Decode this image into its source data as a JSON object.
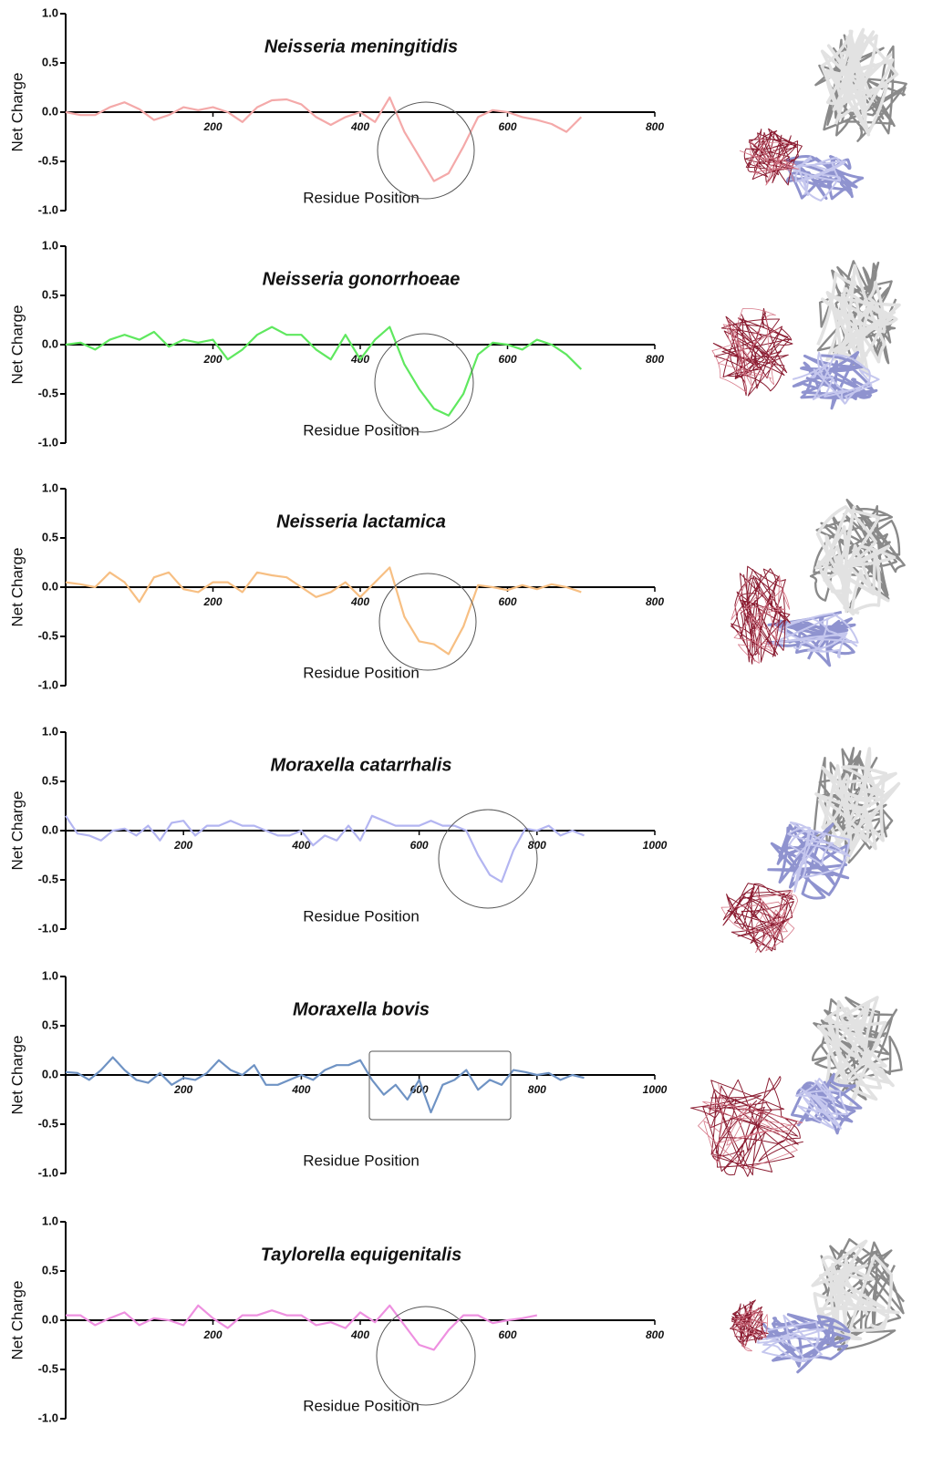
{
  "chart_data": [
    {
      "type": "line",
      "title": "Neisseria meningitidis",
      "xlabel": "Residue Position",
      "ylabel": "Net Charge",
      "color": "#f4a9a9",
      "x": [
        0,
        20,
        40,
        60,
        80,
        100,
        120,
        140,
        160,
        180,
        200,
        220,
        240,
        260,
        280,
        300,
        320,
        340,
        360,
        380,
        400,
        420,
        440,
        460,
        480,
        500,
        520,
        540,
        560,
        580,
        600,
        620,
        640,
        660,
        680,
        700
      ],
      "values": [
        0,
        -0.03,
        -0.03,
        0.05,
        0.1,
        0.03,
        -0.08,
        -0.03,
        0.05,
        0.02,
        0.05,
        0,
        -0.1,
        0.05,
        0.12,
        0.13,
        0.08,
        -0.05,
        -0.13,
        -0.05,
        0,
        -0.1,
        0.15,
        -0.2,
        -0.45,
        -0.7,
        -0.62,
        -0.35,
        -0.05,
        0.02,
        0,
        -0.05,
        -0.08,
        -0.12,
        -0.2,
        -0.05
      ],
      "xlim": [
        0,
        800
      ],
      "xticks": [
        200,
        400,
        600,
        800
      ],
      "ylim": [
        -1,
        1
      ],
      "yticks": [
        {
          "value": 1,
          "label": "1.0"
        },
        {
          "value": 0.5,
          "label": "0.5"
        },
        {
          "value": 0,
          "label": "0.0"
        },
        {
          "value": -0.5,
          "label": "-0.5"
        },
        {
          "value": -1,
          "label": "-1.0"
        }
      ]
    },
    {
      "type": "line",
      "title": "Neisseria gonorrhoeae",
      "xlabel": "Residue Position",
      "ylabel": "Net Charge",
      "color": "#5fe85f",
      "x": [
        0,
        20,
        40,
        60,
        80,
        100,
        120,
        140,
        160,
        180,
        200,
        220,
        240,
        260,
        280,
        300,
        320,
        340,
        360,
        380,
        400,
        420,
        440,
        460,
        480,
        500,
        520,
        540,
        560,
        580,
        600,
        620,
        640,
        660,
        680,
        700
      ],
      "values": [
        0,
        0.02,
        -0.05,
        0.05,
        0.1,
        0.05,
        0.13,
        -0.02,
        0.05,
        0.02,
        0.05,
        -0.15,
        -0.05,
        0.1,
        0.18,
        0.1,
        0.1,
        -0.05,
        -0.15,
        0.1,
        -0.15,
        0.05,
        0.18,
        -0.2,
        -0.45,
        -0.65,
        -0.72,
        -0.5,
        -0.1,
        0.02,
        0,
        -0.05,
        0.05,
        0,
        -0.1,
        -0.25
      ],
      "xlim": [
        0,
        800
      ],
      "xticks": [
        200,
        400,
        600,
        800
      ],
      "ylim": [
        -1,
        1
      ],
      "yticks": [
        {
          "value": 1,
          "label": "1.0"
        },
        {
          "value": 0.5,
          "label": "0.5"
        },
        {
          "value": 0,
          "label": "0.0"
        },
        {
          "value": -0.5,
          "label": "-0.5"
        },
        {
          "value": -1,
          "label": "-1.0"
        }
      ]
    },
    {
      "type": "line",
      "title": "Neisseria lactamica",
      "xlabel": "Residue Position",
      "ylabel": "Net Charge",
      "color": "#f7bf83",
      "x": [
        0,
        20,
        40,
        60,
        80,
        100,
        120,
        140,
        160,
        180,
        200,
        220,
        240,
        260,
        280,
        300,
        320,
        340,
        360,
        380,
        400,
        420,
        440,
        460,
        480,
        500,
        520,
        540,
        560,
        580,
        600,
        620,
        640,
        660,
        680,
        700
      ],
      "values": [
        0.05,
        0.03,
        0,
        0.15,
        0.05,
        -0.15,
        0.1,
        0.15,
        -0.02,
        -0.05,
        0.05,
        0.05,
        -0.05,
        0.15,
        0.12,
        0.1,
        0,
        -0.1,
        -0.05,
        0.05,
        -0.1,
        0.05,
        0.2,
        -0.3,
        -0.55,
        -0.58,
        -0.68,
        -0.4,
        0.02,
        0,
        -0.03,
        0.02,
        -0.02,
        0.03,
        0,
        -0.05
      ],
      "xlim": [
        0,
        800
      ],
      "xticks": [
        200,
        400,
        600,
        800
      ],
      "ylim": [
        -1,
        1
      ],
      "yticks": [
        {
          "value": 1,
          "label": "1.0"
        },
        {
          "value": 0.5,
          "label": "0.5"
        },
        {
          "value": 0,
          "label": "0.0"
        },
        {
          "value": -0.5,
          "label": "-0.5"
        },
        {
          "value": -1,
          "label": "-1.0"
        }
      ]
    },
    {
      "type": "line",
      "title": "Moraxella catarrhalis",
      "xlabel": "Residue Position",
      "ylabel": "Net Charge",
      "color": "#b3b5f1",
      "x": [
        0,
        20,
        40,
        60,
        80,
        100,
        120,
        140,
        160,
        180,
        200,
        220,
        240,
        260,
        280,
        300,
        320,
        340,
        360,
        380,
        400,
        420,
        440,
        460,
        480,
        500,
        520,
        540,
        560,
        580,
        600,
        620,
        640,
        660,
        680,
        700,
        720,
        740,
        760,
        780,
        800,
        820,
        840,
        860,
        880
      ],
      "values": [
        0.15,
        -0.03,
        -0.05,
        -0.1,
        0,
        0.02,
        -0.05,
        0.05,
        -0.1,
        0.08,
        0.1,
        -0.05,
        0.05,
        0.05,
        0.1,
        0.05,
        0.05,
        0,
        -0.05,
        -0.05,
        0,
        -0.15,
        -0.05,
        -0.1,
        0.05,
        -0.1,
        0.15,
        0.1,
        0.05,
        0.05,
        0.05,
        0.1,
        0.05,
        0.05,
        0,
        -0.25,
        -0.45,
        -0.52,
        -0.2,
        0.02,
        0,
        0.05,
        -0.05,
        0,
        -0.05
      ],
      "xlim": [
        0,
        1000
      ],
      "xticks": [
        200,
        400,
        600,
        800,
        1000
      ],
      "ylim": [
        -1,
        1
      ],
      "yticks": [
        {
          "value": 1,
          "label": "1.0"
        },
        {
          "value": 0.5,
          "label": "0.5"
        },
        {
          "value": 0,
          "label": "0.0"
        },
        {
          "value": -0.5,
          "label": "-0.5"
        },
        {
          "value": -1,
          "label": "-1.0"
        }
      ]
    },
    {
      "type": "line",
      "title": "Moraxella bovis",
      "xlabel": "Residue Position",
      "ylabel": "Net Charge",
      "color": "#6f93c4",
      "x": [
        0,
        20,
        40,
        60,
        80,
        100,
        120,
        140,
        160,
        180,
        200,
        220,
        240,
        260,
        280,
        300,
        320,
        340,
        360,
        380,
        400,
        420,
        440,
        460,
        480,
        500,
        520,
        540,
        560,
        580,
        600,
        620,
        640,
        660,
        680,
        700,
        720,
        740,
        760,
        780,
        800,
        820,
        840,
        860,
        880
      ],
      "values": [
        0.03,
        0.02,
        -0.05,
        0.05,
        0.18,
        0.05,
        -0.05,
        -0.08,
        0.02,
        -0.1,
        -0.03,
        -0.05,
        0.02,
        0.15,
        0.05,
        0,
        0.1,
        -0.1,
        -0.1,
        -0.05,
        0,
        -0.05,
        0.05,
        0.1,
        0.1,
        0.15,
        -0.05,
        -0.2,
        -0.1,
        -0.25,
        -0.05,
        -0.38,
        -0.1,
        -0.05,
        0.05,
        -0.15,
        -0.05,
        -0.1,
        0.05,
        0.03,
        0,
        0.02,
        -0.05,
        0,
        -0.03
      ],
      "xlim": [
        0,
        1000
      ],
      "xticks": [
        200,
        400,
        600,
        800,
        1000
      ],
      "ylim": [
        -1,
        1
      ],
      "yticks": [
        {
          "value": 1,
          "label": "1.0"
        },
        {
          "value": 0.5,
          "label": "0.5"
        },
        {
          "value": 0,
          "label": "0.0"
        },
        {
          "value": -0.5,
          "label": "-0.5"
        },
        {
          "value": -1,
          "label": "-1.0"
        }
      ]
    },
    {
      "type": "line",
      "title": "Taylorella equigenitalis",
      "xlabel": "Residue Position",
      "ylabel": "Net Charge",
      "color": "#ee90e0",
      "x": [
        0,
        20,
        40,
        60,
        80,
        100,
        120,
        140,
        160,
        180,
        200,
        220,
        240,
        260,
        280,
        300,
        320,
        340,
        360,
        380,
        400,
        420,
        440,
        460,
        480,
        500,
        520,
        540,
        560,
        580,
        600,
        620,
        640
      ],
      "values": [
        0.05,
        0.05,
        -0.05,
        0.02,
        0.08,
        -0.05,
        0.02,
        0,
        -0.05,
        0.15,
        0.02,
        -0.08,
        0.05,
        0.05,
        0.1,
        0.05,
        0.05,
        -0.05,
        -0.02,
        -0.08,
        0.08,
        -0.02,
        0.15,
        -0.05,
        -0.25,
        -0.3,
        -0.1,
        0.05,
        0.05,
        -0.03,
        0,
        0.02,
        0.05
      ],
      "xlim": [
        0,
        800
      ],
      "xticks": [
        200,
        400,
        600,
        800
      ],
      "ylim": [
        -1,
        1
      ],
      "yticks": [
        {
          "value": 1,
          "label": "1.0"
        },
        {
          "value": 0.5,
          "label": "0.5"
        },
        {
          "value": 0,
          "label": "0.0"
        },
        {
          "value": -0.5,
          "label": "-0.5"
        },
        {
          "value": -1,
          "label": "-1.0"
        }
      ]
    }
  ]
}
